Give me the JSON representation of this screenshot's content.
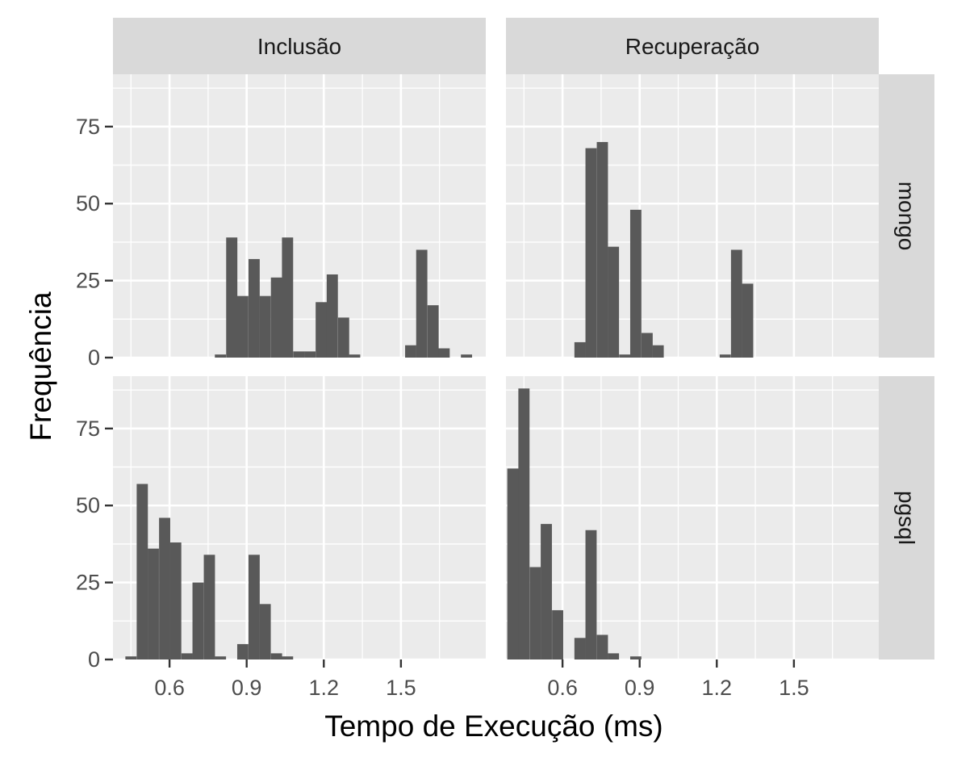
{
  "chart_data": {
    "type": "bar",
    "title": "",
    "xlabel": "Tempo de Execução (ms)",
    "ylabel": "Frequência",
    "xlim": [
      0.38,
      1.83
    ],
    "ylim": [
      0,
      92
    ],
    "x_ticks": [
      0.6,
      0.9,
      1.2,
      1.5
    ],
    "x_tick_labels": [
      "0.6",
      "0.9",
      "1.2",
      "1.5"
    ],
    "y_ticks": [
      0,
      25,
      50,
      75
    ],
    "y_tick_labels": [
      "0",
      "25",
      "50",
      "75"
    ],
    "bin_width": 0.0435,
    "facet_columns": [
      "Inclusão",
      "Recuperação"
    ],
    "facet_rows": [
      "mongo",
      "pgsql"
    ],
    "colors": {
      "bar": "#595959",
      "panel": "#ebebeb",
      "grid": "#ffffff",
      "strip": "#d9d9d9"
    },
    "panels": [
      {
        "row": "mongo",
        "column": "Inclusão",
        "bins": [
          {
            "x": 0.798,
            "count": 1
          },
          {
            "x": 0.842,
            "count": 39
          },
          {
            "x": 0.885,
            "count": 20
          },
          {
            "x": 0.929,
            "count": 32
          },
          {
            "x": 0.972,
            "count": 20
          },
          {
            "x": 1.016,
            "count": 26
          },
          {
            "x": 1.059,
            "count": 39
          },
          {
            "x": 1.103,
            "count": 2
          },
          {
            "x": 1.146,
            "count": 2
          },
          {
            "x": 1.19,
            "count": 18
          },
          {
            "x": 1.233,
            "count": 27
          },
          {
            "x": 1.277,
            "count": 13
          },
          {
            "x": 1.32,
            "count": 1
          },
          {
            "x": 1.538,
            "count": 4
          },
          {
            "x": 1.581,
            "count": 35
          },
          {
            "x": 1.625,
            "count": 17
          },
          {
            "x": 1.668,
            "count": 3
          },
          {
            "x": 1.755,
            "count": 1
          }
        ]
      },
      {
        "row": "mongo",
        "column": "Recuperação",
        "bins": [
          {
            "x": 0.668,
            "count": 5
          },
          {
            "x": 0.711,
            "count": 68
          },
          {
            "x": 0.755,
            "count": 70
          },
          {
            "x": 0.798,
            "count": 36
          },
          {
            "x": 0.842,
            "count": 1
          },
          {
            "x": 0.885,
            "count": 48
          },
          {
            "x": 0.929,
            "count": 8
          },
          {
            "x": 0.972,
            "count": 4
          },
          {
            "x": 1.233,
            "count": 1
          },
          {
            "x": 1.277,
            "count": 35
          },
          {
            "x": 1.32,
            "count": 24
          }
        ]
      },
      {
        "row": "pgsql",
        "column": "Inclusão",
        "bins": [
          {
            "x": 0.45,
            "count": 1
          },
          {
            "x": 0.494,
            "count": 57
          },
          {
            "x": 0.537,
            "count": 36
          },
          {
            "x": 0.581,
            "count": 46
          },
          {
            "x": 0.624,
            "count": 38
          },
          {
            "x": 0.668,
            "count": 2
          },
          {
            "x": 0.711,
            "count": 25
          },
          {
            "x": 0.755,
            "count": 34
          },
          {
            "x": 0.798,
            "count": 1
          },
          {
            "x": 0.885,
            "count": 5
          },
          {
            "x": 0.929,
            "count": 34
          },
          {
            "x": 0.972,
            "count": 18
          },
          {
            "x": 1.016,
            "count": 2
          },
          {
            "x": 1.059,
            "count": 1
          }
        ]
      },
      {
        "row": "pgsql",
        "column": "Recuperação",
        "bins": [
          {
            "x": 0.407,
            "count": 62
          },
          {
            "x": 0.45,
            "count": 88
          },
          {
            "x": 0.494,
            "count": 30
          },
          {
            "x": 0.537,
            "count": 44
          },
          {
            "x": 0.581,
            "count": 16
          },
          {
            "x": 0.668,
            "count": 7
          },
          {
            "x": 0.711,
            "count": 42
          },
          {
            "x": 0.755,
            "count": 8
          },
          {
            "x": 0.798,
            "count": 2
          },
          {
            "x": 0.885,
            "count": 1
          }
        ]
      }
    ]
  }
}
